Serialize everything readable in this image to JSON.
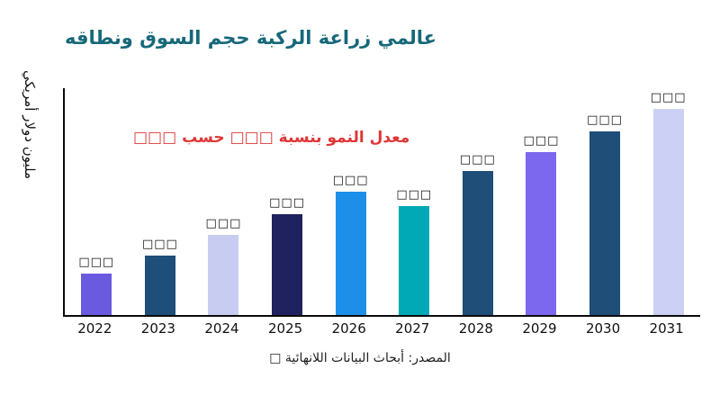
{
  "title": {
    "text": "عالمي زراعة الركبة حجم السوق ونطاقه",
    "color": "#17687a"
  },
  "annotation": {
    "text": "معدل النمو بنسبة □□□ حسب □□□",
    "color": "#e03636"
  },
  "y_axis_label": "مليون دولار أمريكي",
  "source": "المصدر: أبحاث البيانات اللانهائية □",
  "chart_data": {
    "type": "bar",
    "title": "عالمي زراعة الركبة حجم السوق ونطاقه",
    "xlabel": "",
    "ylabel": "مليون دولار أمريكي",
    "categories": [
      "2022",
      "2023",
      "2024",
      "2025",
      "2026",
      "2027",
      "2028",
      "2029",
      "2030",
      "2031"
    ],
    "values": [
      20,
      29,
      39,
      49,
      60,
      53,
      70,
      79,
      89,
      100
    ],
    "bar_labels": [
      "□□□",
      "□□□",
      "□□□",
      "□□□",
      "□□□",
      "□□□",
      "□□□",
      "□□□",
      "□□□",
      "□□□"
    ],
    "bar_colors": [
      "#6a5ae0",
      "#1f4e78",
      "#c8ccf0",
      "#20215f",
      "#1e8fe8",
      "#00a9b5",
      "#1f4e78",
      "#7b68ee",
      "#1f4e78",
      "#ccd0f4"
    ],
    "ylim": [
      0,
      110
    ],
    "grid": false,
    "legend": null,
    "annotation": "معدل النمو بنسبة □□□ حسب □□□"
  }
}
